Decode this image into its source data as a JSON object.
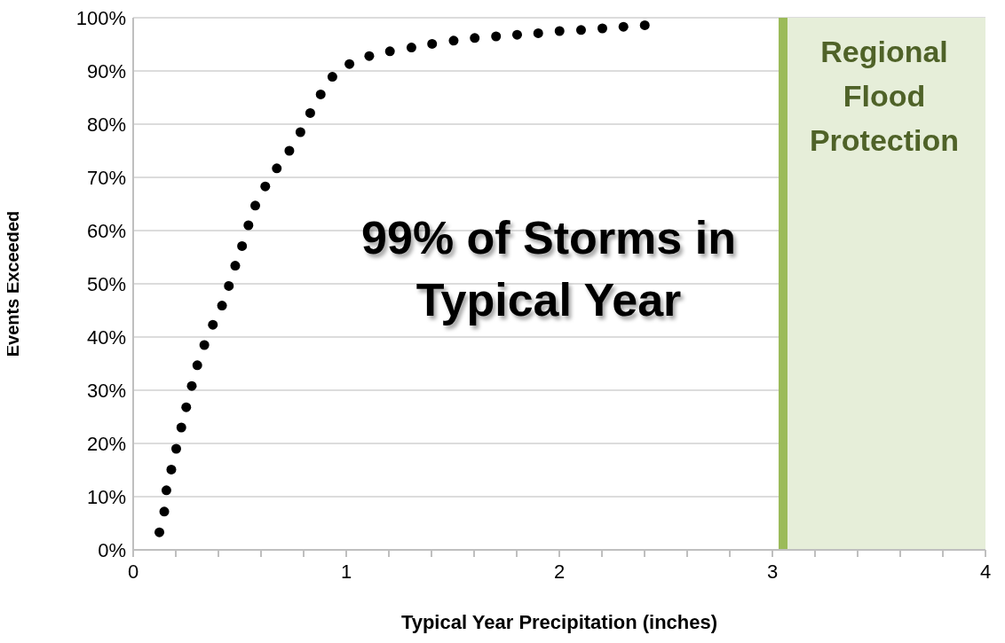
{
  "chart_data": {
    "type": "scatter",
    "xlabel": "Typical Year Precipitation (inches)",
    "ylabel": "Events Exceeded",
    "annotations": [
      "99% of Storms in Typical Year"
    ],
    "x": [
      0.123,
      0.146,
      0.156,
      0.179,
      0.202,
      0.226,
      0.249,
      0.275,
      0.301,
      0.334,
      0.374,
      0.417,
      0.449,
      0.479,
      0.511,
      0.541,
      0.573,
      0.62,
      0.674,
      0.733,
      0.785,
      0.831,
      0.88,
      0.935,
      1.015,
      1.108,
      1.205,
      1.306,
      1.403,
      1.504,
      1.603,
      1.703,
      1.802,
      1.901,
      2.001,
      2.102,
      2.202,
      2.301,
      2.401
    ],
    "series": [
      {
        "color": "#000000",
        "values": [
          3.3,
          7.2,
          11.2,
          15.1,
          19.0,
          23.0,
          26.8,
          30.8,
          34.7,
          38.5,
          42.3,
          45.9,
          49.6,
          53.4,
          57.1,
          61.0,
          64.7,
          68.3,
          71.7,
          75.0,
          78.5,
          82.1,
          85.6,
          88.9,
          91.3,
          92.8,
          93.7,
          94.4,
          95.1,
          95.7,
          96.2,
          96.5,
          96.8,
          97.1,
          97.5,
          97.7,
          98.0,
          98.3,
          98.6
        ]
      }
    ],
    "marker": "circle",
    "xlim": [
      0,
      4
    ],
    "xticks": [
      0,
      {
        "value": 0.2,
        "label": null
      },
      {
        "value": 0.4,
        "label": null
      },
      {
        "value": 0.6,
        "label": null
      },
      {
        "value": 0.8,
        "label": null
      },
      1,
      {
        "value": 1.2,
        "label": null
      },
      {
        "value": 1.4,
        "label": null
      },
      {
        "value": 1.6,
        "label": null
      },
      {
        "value": 1.8,
        "label": null
      },
      2,
      {
        "value": 2.2,
        "label": null
      },
      {
        "value": 2.4,
        "label": null
      },
      {
        "value": 2.6,
        "label": null
      },
      {
        "value": 2.8,
        "label": null
      },
      3,
      {
        "value": 3.2,
        "label": null
      },
      {
        "value": 3.4,
        "label": null
      },
      {
        "value": 3.6,
        "label": null
      },
      {
        "value": 3.8,
        "label": null
      },
      4
    ],
    "ylim": [
      0,
      100
    ],
    "yticks": [
      {
        "value": 0,
        "label": "0%"
      },
      {
        "value": 10,
        "label": "10%"
      },
      {
        "value": 20,
        "label": "20%"
      },
      {
        "value": 30,
        "label": "30%"
      },
      {
        "value": 40,
        "label": "40%"
      },
      {
        "value": 50,
        "label": "50%"
      },
      {
        "value": 60,
        "label": "60%"
      },
      {
        "value": 70,
        "label": "70%"
      },
      {
        "value": 80,
        "label": "80%"
      },
      {
        "value": 90,
        "label": "90%"
      },
      {
        "value": 100,
        "label": "100%"
      }
    ],
    "grid": "y",
    "bands": [
      {
        "axis": "x",
        "from": 3.05,
        "to": 4,
        "label": "Regional Flood Protection",
        "color": "#e6eed9"
      }
    ],
    "ref_lines": [
      {
        "axis": "x",
        "value": 3.05,
        "color": "#9bbb59",
        "line_style": "solid"
      }
    ]
  }
}
